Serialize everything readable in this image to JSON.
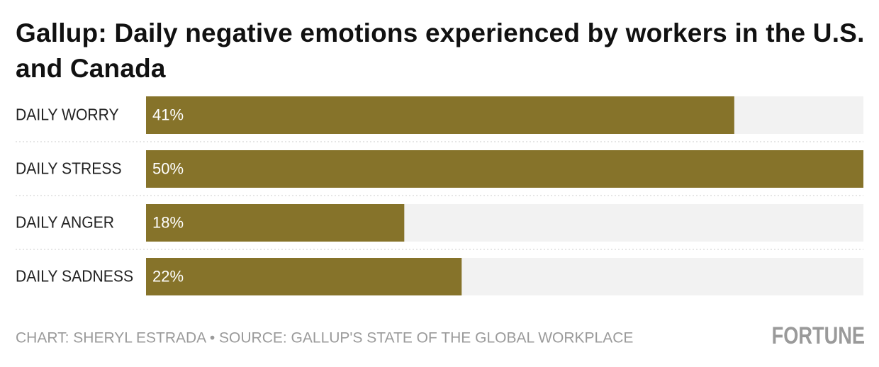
{
  "chart_data": {
    "type": "bar",
    "orientation": "horizontal",
    "title": "Gallup: Daily negative emotions experienced by workers in the U.S. and Canada",
    "categories": [
      "DAILY WORRY",
      "DAILY STRESS",
      "DAILY ANGER",
      "DAILY SADNESS"
    ],
    "values": [
      41,
      50,
      18,
      22
    ],
    "value_labels": [
      "41%",
      "50%",
      "18%",
      "22%"
    ],
    "color": "#86732a",
    "xlim": [
      0,
      50
    ],
    "source": "CHART: SHERYL ESTRADA • SOURCE: GALLUP'S STATE OF THE GLOBAL WORKPLACE",
    "logo": "FORTUNE"
  }
}
